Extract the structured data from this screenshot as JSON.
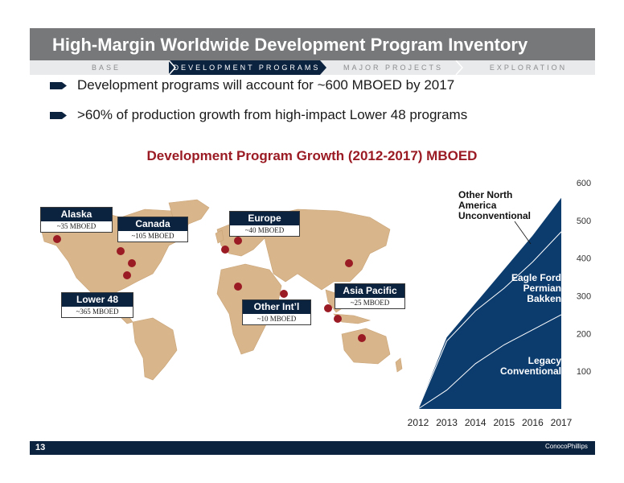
{
  "title": "High-Margin Worldwide Development Program Inventory",
  "nav": {
    "items": [
      "BASE",
      "DEVELOPMENT PROGRAMS",
      "MAJOR PROJECTS",
      "EXPLORATION"
    ],
    "active_index": 1
  },
  "bullets": [
    "Development programs will account for ~600 MBOED by 2017",
    ">60% of production growth from high-impact Lower 48 programs"
  ],
  "chart_title": "Development Program Growth (2012-2017) MBOED",
  "regions": {
    "alaska": {
      "name": "Alaska",
      "value": "~35 MBOED"
    },
    "canada": {
      "name": "Canada",
      "value": "~105 MBOED"
    },
    "europe": {
      "name": "Europe",
      "value": "~40 MBOED"
    },
    "lower48": {
      "name": "Lower 48",
      "value": "~365 MBOED"
    },
    "other_intl": {
      "name": "Other Int’l",
      "value": "~10 MBOED"
    },
    "asia_pacific": {
      "name": "Asia Pacific",
      "value": "~25 MBOED"
    }
  },
  "chart_data": {
    "type": "area",
    "title": "Development Program Growth (2012-2017) MBOED",
    "x": [
      "2012",
      "2013",
      "2014",
      "2015",
      "2016",
      "2017"
    ],
    "ylim": [
      0,
      600
    ],
    "yticks": [
      100,
      200,
      300,
      400,
      500,
      600
    ],
    "stacked": true,
    "series": [
      {
        "name": "Legacy Conventional",
        "values": [
          0,
          50,
          120,
          170,
          210,
          250
        ]
      },
      {
        "name": "Eagle Ford Permian Bakken",
        "values": [
          0,
          180,
          260,
          320,
          390,
          470
        ]
      },
      {
        "name": "Other North America Unconventional",
        "values": [
          0,
          190,
          280,
          370,
          460,
          560
        ]
      }
    ],
    "labels": {
      "top": [
        "Other North",
        "America",
        "Unconventional"
      ],
      "middle": [
        "Eagle Ford",
        "Permian",
        "Bakken"
      ],
      "bottom": [
        "Legacy",
        "Conventional"
      ]
    },
    "colors": {
      "fill": "#0c3c6e",
      "line": "#ffffff"
    }
  },
  "footer": {
    "page_number": "13",
    "logo": "ConocoPhillips"
  },
  "colors": {
    "navy": "#0c2340",
    "title_gray": "#76787a",
    "accent_red": "#9b1b24",
    "land": "#d8b58a",
    "marker": "#9b1b24"
  }
}
